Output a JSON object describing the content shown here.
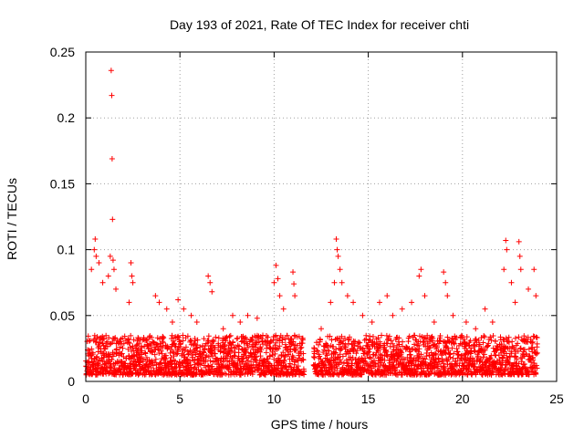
{
  "chart_data": {
    "type": "scatter",
    "title": "Day 193 of 2021, Rate Of TEC Index for receiver chti",
    "xlabel": "GPS time / hours",
    "ylabel": "ROTI / TECUs",
    "xlim": [
      0,
      25
    ],
    "ylim": [
      0,
      0.25
    ],
    "xticks": [
      0,
      5,
      10,
      15,
      20,
      25
    ],
    "xtick_labels": [
      "0",
      "5",
      "10",
      "15",
      "20",
      "25"
    ],
    "yticks": [
      0,
      0.05,
      0.1,
      0.15,
      0.2,
      0.25
    ],
    "ytick_labels": [
      "0",
      "0.05",
      "0.1",
      "0.15",
      "0.2",
      "0.25"
    ],
    "grid": true,
    "marker": "plus",
    "marker_color": "#ff0000",
    "series": [
      {
        "name": "ROTI",
        "color": "#ff0000",
        "points": [
          [
            1.35,
            0.236
          ],
          [
            1.38,
            0.217
          ],
          [
            1.4,
            0.169
          ],
          [
            1.42,
            0.123
          ],
          [
            0.5,
            0.108
          ],
          [
            0.45,
            0.1
          ],
          [
            0.55,
            0.095
          ],
          [
            0.3,
            0.085
          ],
          [
            0.7,
            0.09
          ],
          [
            0.9,
            0.075
          ],
          [
            1.3,
            0.095
          ],
          [
            1.45,
            0.092
          ],
          [
            1.5,
            0.085
          ],
          [
            1.2,
            0.08
          ],
          [
            1.6,
            0.07
          ],
          [
            2.4,
            0.09
          ],
          [
            2.45,
            0.08
          ],
          [
            2.5,
            0.075
          ],
          [
            2.3,
            0.06
          ],
          [
            3.7,
            0.065
          ],
          [
            3.9,
            0.06
          ],
          [
            4.3,
            0.055
          ],
          [
            4.6,
            0.045
          ],
          [
            4.9,
            0.062
          ],
          [
            5.2,
            0.055
          ],
          [
            5.6,
            0.05
          ],
          [
            5.9,
            0.045
          ],
          [
            6.5,
            0.08
          ],
          [
            6.6,
            0.075
          ],
          [
            6.7,
            0.068
          ],
          [
            7.3,
            0.04
          ],
          [
            7.8,
            0.05
          ],
          [
            8.2,
            0.045
          ],
          [
            8.6,
            0.05
          ],
          [
            9.1,
            0.048
          ],
          [
            9.4,
            0.035
          ],
          [
            10.0,
            0.075
          ],
          [
            10.1,
            0.088
          ],
          [
            10.2,
            0.078
          ],
          [
            10.3,
            0.065
          ],
          [
            10.5,
            0.055
          ],
          [
            11.0,
            0.083
          ],
          [
            11.05,
            0.074
          ],
          [
            11.1,
            0.065
          ],
          [
            12.5,
            0.04
          ],
          [
            13.0,
            0.06
          ],
          [
            13.2,
            0.075
          ],
          [
            13.3,
            0.108
          ],
          [
            13.35,
            0.1
          ],
          [
            13.4,
            0.095
          ],
          [
            13.5,
            0.085
          ],
          [
            13.6,
            0.075
          ],
          [
            13.9,
            0.065
          ],
          [
            14.2,
            0.06
          ],
          [
            14.7,
            0.05
          ],
          [
            15.2,
            0.045
          ],
          [
            15.6,
            0.06
          ],
          [
            16.0,
            0.065
          ],
          [
            16.3,
            0.05
          ],
          [
            16.8,
            0.055
          ],
          [
            17.3,
            0.06
          ],
          [
            17.7,
            0.08
          ],
          [
            17.8,
            0.085
          ],
          [
            18.0,
            0.065
          ],
          [
            18.5,
            0.045
          ],
          [
            19.0,
            0.083
          ],
          [
            19.1,
            0.075
          ],
          [
            19.2,
            0.065
          ],
          [
            19.5,
            0.05
          ],
          [
            20.2,
            0.045
          ],
          [
            20.7,
            0.04
          ],
          [
            21.2,
            0.055
          ],
          [
            21.6,
            0.045
          ],
          [
            22.2,
            0.085
          ],
          [
            22.3,
            0.107
          ],
          [
            22.35,
            0.1
          ],
          [
            22.6,
            0.075
          ],
          [
            22.8,
            0.06
          ],
          [
            23.0,
            0.106
          ],
          [
            23.05,
            0.095
          ],
          [
            23.1,
            0.085
          ],
          [
            23.5,
            0.07
          ],
          [
            23.8,
            0.085
          ],
          [
            23.9,
            0.065
          ]
        ]
      }
    ],
    "dense_band": {
      "description": "dense cluster of low ROTI values across the day",
      "x_range": [
        0,
        24
      ],
      "y_range": [
        0.005,
        0.035
      ],
      "gap_hours": [
        [
          11.6,
          12.1
        ]
      ]
    }
  }
}
